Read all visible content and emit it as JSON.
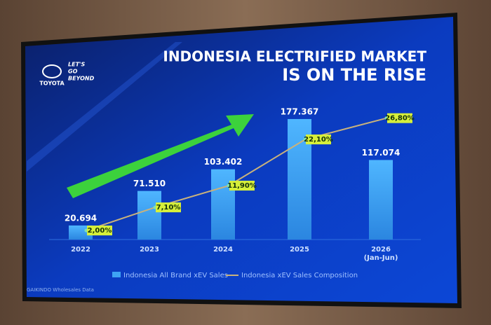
{
  "brand": {
    "name": "TOYOTA",
    "slogan": [
      "LET'S",
      "GO",
      "BEYOND"
    ]
  },
  "chart_data": {
    "type": "bar",
    "title": [
      "INDONESIA ELECTRIFIED MARKET",
      "IS ON THE RISE"
    ],
    "categories": [
      "2022",
      "2023",
      "2024",
      "2025",
      "2026 (Jan-Jun)"
    ],
    "series": [
      {
        "name": "Indonesia All Brand xEV Sales",
        "color": "#3ea4f4",
        "type": "bar",
        "values": [
          20694,
          71510,
          103402,
          177367,
          117074
        ],
        "value_labels": [
          "20.694",
          "71.510",
          "103.402",
          "177.367",
          "117.074"
        ]
      },
      {
        "name": "Indonesia xEV Sales Composition",
        "color": "#c9b27c",
        "type": "line",
        "axis": "y2",
        "values": [
          2.0,
          7.1,
          11.9,
          22.1,
          26.8
        ],
        "value_labels": [
          "2,00%",
          "7,10%",
          "11,90%",
          "22,10%",
          "26,80%"
        ]
      }
    ],
    "ylim": [
      0,
      200000
    ],
    "y2lim": [
      0,
      30
    ],
    "source": "GAIKINDO Wholesales Data"
  }
}
